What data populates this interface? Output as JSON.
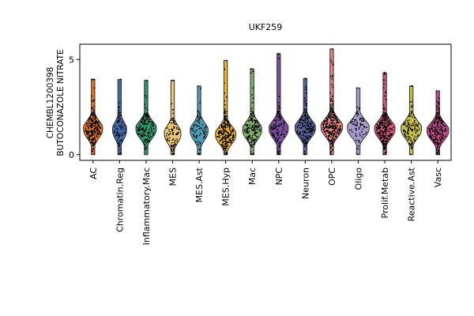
{
  "chart_data": {
    "type": "violin",
    "title": "UKF259",
    "ylabel_lines": [
      "CHEMBL1200398",
      "BUTOCONAZOLE NITRATE"
    ],
    "xlabel": "",
    "ylim": [
      -0.3,
      5.8
    ],
    "yticks": [
      0,
      5
    ],
    "grid": false,
    "legend": "none",
    "categories": [
      "AC",
      "Chromatin.Reg",
      "Inflammatory.Mac",
      "MES",
      "MES.Ast",
      "MES.Hyp",
      "Mac",
      "NPC",
      "Neuron",
      "OPC",
      "Oligo",
      "Prolif.Metab",
      "Reactive.Ast",
      "Vasc"
    ],
    "colors": [
      "#e8731d",
      "#3e6aa6",
      "#2a9a6c",
      "#e9c46a",
      "#4a9db5",
      "#f0b323",
      "#7fb069",
      "#7b4e9c",
      "#555f99",
      "#e88080",
      "#a59bcc",
      "#d8557a",
      "#c9c03c",
      "#c1478d"
    ],
    "medians": [
      1.3,
      1.25,
      1.3,
      1.05,
      1.2,
      1.0,
      1.25,
      1.3,
      1.35,
      1.4,
      1.35,
      1.3,
      1.3,
      1.2
    ],
    "maxima": [
      3.95,
      3.95,
      3.9,
      3.9,
      3.6,
      4.95,
      4.5,
      5.3,
      4.0,
      5.55,
      3.5,
      4.3,
      3.6,
      3.35
    ],
    "widths": [
      0.75,
      0.55,
      0.8,
      0.65,
      0.7,
      0.8,
      0.75,
      0.75,
      0.8,
      0.85,
      0.85,
      0.8,
      0.8,
      0.85
    ],
    "counts": [
      220,
      70,
      140,
      90,
      70,
      220,
      150,
      110,
      150,
      260,
      70,
      240,
      110,
      190
    ]
  }
}
